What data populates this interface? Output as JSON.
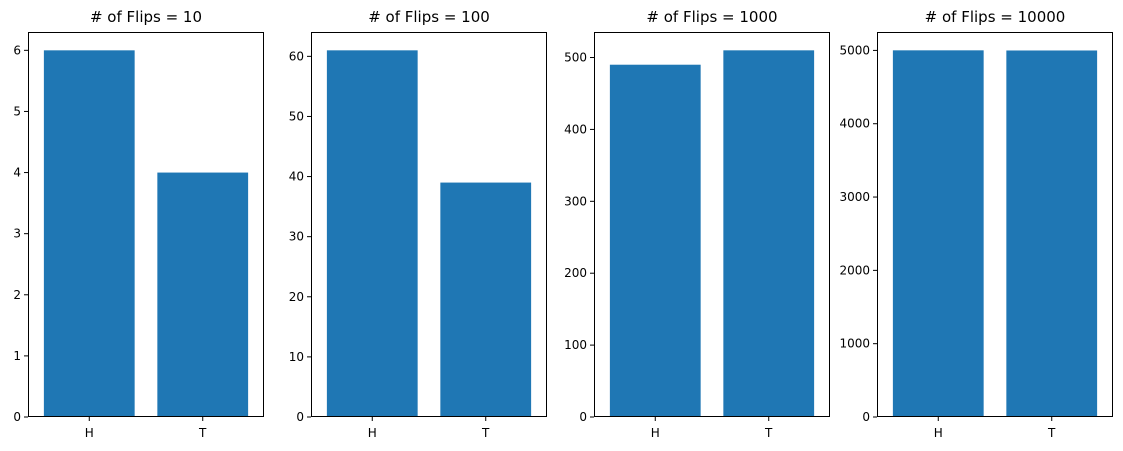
{
  "chart_data": [
    {
      "type": "bar",
      "title": "# of Flips = 10",
      "categories": [
        "H",
        "T"
      ],
      "values": [
        6,
        4
      ],
      "ylim": [
        0,
        6.3
      ],
      "yticks": [
        0,
        1,
        2,
        3,
        4,
        5,
        6
      ],
      "color": "#1f77b4",
      "grid": false,
      "xlabel": "",
      "ylabel": ""
    },
    {
      "type": "bar",
      "title": "# of Flips = 100",
      "categories": [
        "H",
        "T"
      ],
      "values": [
        61,
        39
      ],
      "ylim": [
        0,
        64.05
      ],
      "yticks": [
        0,
        10,
        20,
        30,
        40,
        50,
        60
      ],
      "color": "#1f77b4",
      "grid": false,
      "xlabel": "",
      "ylabel": ""
    },
    {
      "type": "bar",
      "title": "# of Flips = 1000",
      "categories": [
        "H",
        "T"
      ],
      "values": [
        490,
        510
      ],
      "ylim": [
        0,
        535.5
      ],
      "yticks": [
        0,
        100,
        200,
        300,
        400,
        500
      ],
      "color": "#1f77b4",
      "grid": false,
      "xlabel": "",
      "ylabel": ""
    },
    {
      "type": "bar",
      "title": "# of Flips = 10000",
      "categories": [
        "H",
        "T"
      ],
      "values": [
        5001,
        4999
      ],
      "ylim": [
        0,
        5251.05
      ],
      "yticks": [
        0,
        1000,
        2000,
        3000,
        4000,
        5000
      ],
      "color": "#1f77b4",
      "grid": false,
      "xlabel": "",
      "ylabel": ""
    }
  ]
}
